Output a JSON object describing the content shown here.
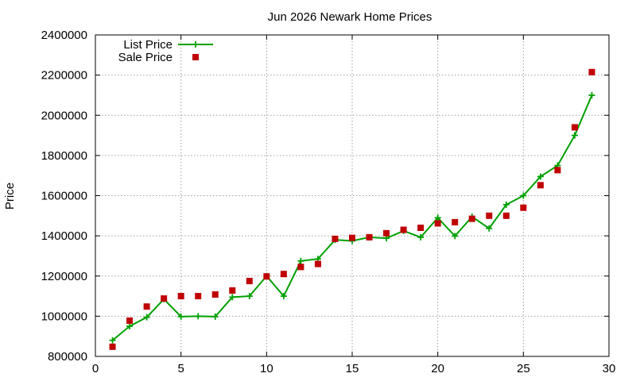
{
  "chart_data": {
    "type": "line",
    "title": "Jun 2026 Newark Home Prices",
    "xlabel": "",
    "ylabel": "Price",
    "xlim": [
      0,
      30
    ],
    "ylim": [
      800000,
      2400000
    ],
    "xticks": [
      "0",
      "5",
      "10",
      "15",
      "20",
      "25",
      "30"
    ],
    "yticks": [
      "800000",
      "1000000",
      "1200000",
      "1400000",
      "1600000",
      "1800000",
      "2000000",
      "2200000",
      "2400000"
    ],
    "grid": true,
    "legend_position": "top-left",
    "x": [
      1,
      2,
      3,
      4,
      5,
      6,
      7,
      8,
      9,
      10,
      11,
      12,
      13,
      14,
      15,
      16,
      17,
      18,
      19,
      20,
      21,
      22,
      23,
      24,
      25,
      26,
      27,
      28,
      29
    ],
    "series": [
      {
        "name": "List Price",
        "style": "line-plus",
        "color": "#00a000",
        "values": [
          880000,
          950000,
          995000,
          1085000,
          998000,
          1000000,
          998000,
          1095000,
          1100000,
          1200000,
          1100000,
          1275000,
          1285000,
          1380000,
          1375000,
          1393000,
          1388000,
          1425000,
          1393000,
          1490000,
          1399000,
          1495000,
          1437000,
          1555000,
          1600000,
          1695000,
          1750000,
          1900000,
          2100000
        ]
      },
      {
        "name": "Sale Price",
        "style": "square",
        "color": "#c00000",
        "values": [
          848000,
          978000,
          1048000,
          1088000,
          1100000,
          1100000,
          1108000,
          1128000,
          1175000,
          1198000,
          1210000,
          1245000,
          1260000,
          1385000,
          1390000,
          1393000,
          1413000,
          1430000,
          1440000,
          1462000,
          1468000,
          1485000,
          1500000,
          1500000,
          1540000,
          1652000,
          1727000,
          1940000,
          2215000
        ]
      }
    ]
  }
}
